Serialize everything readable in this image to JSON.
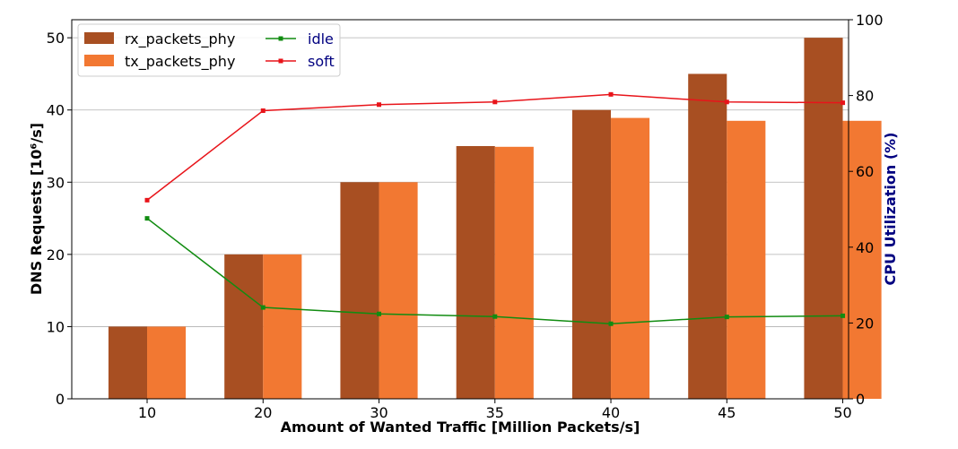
{
  "chart_data": {
    "type": "bar",
    "categories": [
      "10",
      "20",
      "30",
      "35",
      "40",
      "45",
      "50"
    ],
    "series": [
      {
        "name": "rx_packets_phy",
        "type": "bar",
        "axis": "left",
        "color": "#a84f22",
        "values": [
          10,
          20,
          30,
          35,
          40,
          45,
          50
        ]
      },
      {
        "name": "tx_packets_phy",
        "type": "bar",
        "axis": "left",
        "color": "#f27832",
        "values": [
          10,
          20,
          30,
          34.9,
          38.9,
          38.5,
          38.5
        ]
      }
    ],
    "line_series": [
      {
        "name": "idle",
        "type": "line",
        "axis": "right",
        "color": "#118c11",
        "marker": "square",
        "values": [
          47.6,
          24.1,
          22.4,
          21.7,
          19.8,
          21.6,
          21.9
        ]
      },
      {
        "name": "soft",
        "type": "line",
        "axis": "right",
        "color": "#e8141a",
        "marker": "square",
        "values": [
          52.4,
          76.0,
          77.6,
          78.3,
          80.3,
          78.3,
          78.1
        ]
      }
    ],
    "xlabel": "Amount of Wanted Traffic [Million Packets/s]",
    "ylabel": "DNS Requests [10⁶/s]",
    "ylabel_right": "CPU Utilization (%)",
    "ylim": [
      0,
      52.5
    ],
    "ylim_right": [
      0,
      100
    ],
    "yticks": [
      0,
      10,
      20,
      30,
      40,
      50
    ],
    "yticks_right": [
      0,
      20,
      40,
      60,
      80,
      100
    ],
    "grid": "horizontal",
    "legend_placement": "top-left",
    "colors": {
      "ylabel_right": "#000080",
      "legend_line_text": "#000080",
      "grid": "#b0b0b0"
    }
  }
}
